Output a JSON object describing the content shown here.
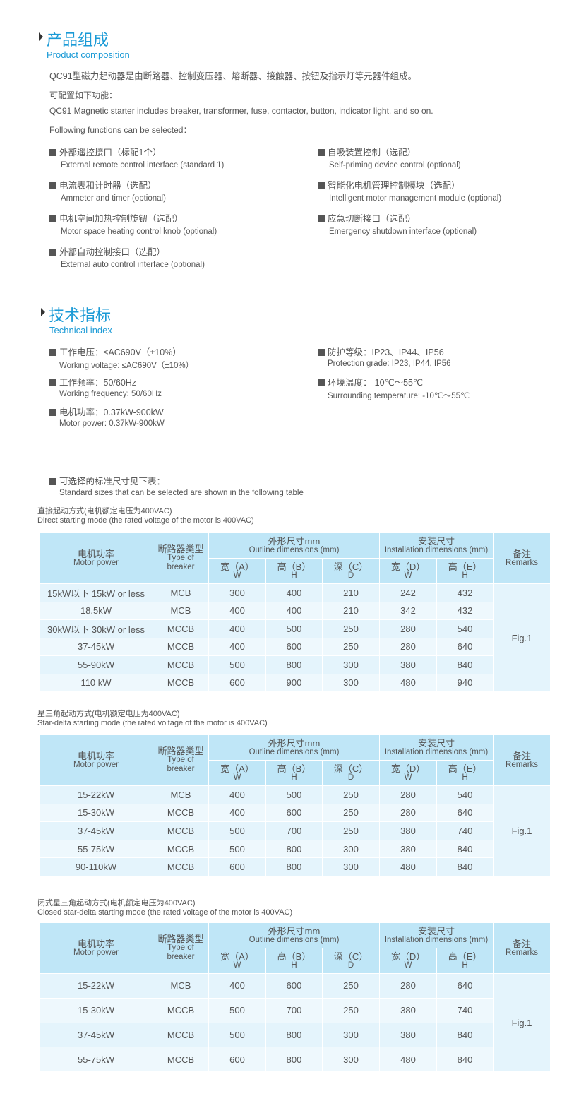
{
  "composition": {
    "title": "产品组成",
    "subtitle": "Product composition",
    "lines": [
      "QC91型磁力起动器是由断路器、控制变压器、熔断器、接触器、按钮及指示灯等元器件组成。",
      "可配置如下功能：",
      "QC91 Magnetic starter includes breaker, transformer, fuse, contactor, button, indicator light, and so on.",
      "Following functions can be selected："
    ],
    "features": [
      {
        "zh": "外部遥控接口（标配1个）",
        "en": "External remote control interface (standard 1)"
      },
      {
        "zh": "自吸装置控制（选配）",
        "en": "Self-priming device control (optional)"
      },
      {
        "zh": "电流表和计时器（选配）",
        "en": "Ammeter and timer (optional)"
      },
      {
        "zh": "智能化电机管理控制模块（选配）",
        "en": "Intelligent motor management module (optional)"
      },
      {
        "zh": "电机空间加热控制旋钮（选配）",
        "en": "Motor space heating control knob (optional)"
      },
      {
        "zh": "应急切断接口（选配）",
        "en": "Emergency shutdown interface (optional)"
      },
      {
        "zh": "外部自动控制接口（选配）",
        "en": "External auto control interface (optional)"
      }
    ]
  },
  "technical": {
    "title": "技术指标",
    "subtitle": "Technical index",
    "items": [
      {
        "zh": "工作电压：≤AC690V（±10%）",
        "en": "Working voltage: ≤AC690V（±10%）"
      },
      {
        "zh": "防护等级：IP23、IP44、IP56",
        "en": "Protection grade: IP23, IP44, IP56"
      },
      {
        "zh": "工作频率：50/60Hz",
        "en": "Working frequency: 50/60Hz"
      },
      {
        "zh": "环境温度：-10℃～55℃",
        "en": "Surrounding temperature: -10℃～55℃"
      },
      {
        "zh": "电机功率：0.37kW-900kW",
        "en": "Motor power: 0.37kW-900kW"
      }
    ],
    "note": {
      "zh": "可选择的标准尺寸见下表：",
      "en": "Standard sizes that can be selected are shown in the following table"
    }
  },
  "header": {
    "power_zh": "电机功率",
    "power_en": "Motor power",
    "breaker_zh": "断路器类型",
    "breaker_en1": "Type of",
    "breaker_en2": "breaker",
    "outline_zh": "外形尺寸mm",
    "outline_en": "Outline dimensions (mm)",
    "install_zh": "安装尺寸",
    "install_en": "Installation dimensions (mm)",
    "remarks_zh": "备注",
    "remarks_en": "Remarks",
    "cols": [
      {
        "zh": "宽（A）",
        "en": "W"
      },
      {
        "zh": "高（B）",
        "en": "H"
      },
      {
        "zh": "深（C）",
        "en": "D"
      },
      {
        "zh": "宽（D）",
        "en": "W"
      },
      {
        "zh": "高（E）",
        "en": "H"
      }
    ]
  },
  "tables": [
    {
      "title_zh": "直接起动方式(电机额定电压为400VAC)",
      "title_en": "Direct starting mode (the rated voltage of the motor is 400VAC)",
      "remark": "Fig.1",
      "rows": [
        [
          "15kW以下 15kW or less",
          "MCB",
          "300",
          "400",
          "210",
          "242",
          "432"
        ],
        [
          "18.5kW",
          "MCB",
          "400",
          "400",
          "210",
          "342",
          "432"
        ],
        [
          "30kW以下 30kW or less",
          "MCCB",
          "400",
          "500",
          "250",
          "280",
          "540"
        ],
        [
          "37-45kW",
          "MCCB",
          "400",
          "600",
          "250",
          "280",
          "640"
        ],
        [
          "55-90kW",
          "MCCB",
          "500",
          "800",
          "300",
          "380",
          "840"
        ],
        [
          "110 kW",
          "MCCB",
          "600",
          "900",
          "300",
          "480",
          "940"
        ]
      ]
    },
    {
      "title_zh": "星三角起动方式(电机额定电压为400VAC)",
      "title_en": "Star-delta starting mode (the rated voltage of the motor is 400VAC)",
      "remark": "Fig.1",
      "rows": [
        [
          "15-22kW",
          "MCB",
          "400",
          "500",
          "250",
          "280",
          "540"
        ],
        [
          "15-30kW",
          "MCCB",
          "400",
          "600",
          "250",
          "280",
          "640"
        ],
        [
          "37-45kW",
          "MCCB",
          "500",
          "700",
          "250",
          "380",
          "740"
        ],
        [
          "55-75kW",
          "MCCB",
          "500",
          "800",
          "300",
          "380",
          "840"
        ],
        [
          "90-110kW",
          "MCCB",
          "600",
          "800",
          "300",
          "480",
          "840"
        ]
      ]
    },
    {
      "title_zh": "闭式星三角起动方式(电机额定电压为400VAC)",
      "title_en": "Closed star-delta starting mode (the rated voltage of the motor is 400VAC)",
      "remark": "Fig.1",
      "rows": [
        [
          "15-22kW",
          "MCB",
          "400",
          "600",
          "250",
          "280",
          "640"
        ],
        [
          "15-30kW",
          "MCCB",
          "500",
          "700",
          "250",
          "380",
          "740"
        ],
        [
          "37-45kW",
          "MCCB",
          "500",
          "800",
          "300",
          "380",
          "840"
        ],
        [
          "55-75kW",
          "MCCB",
          "600",
          "800",
          "300",
          "480",
          "840"
        ]
      ]
    }
  ]
}
